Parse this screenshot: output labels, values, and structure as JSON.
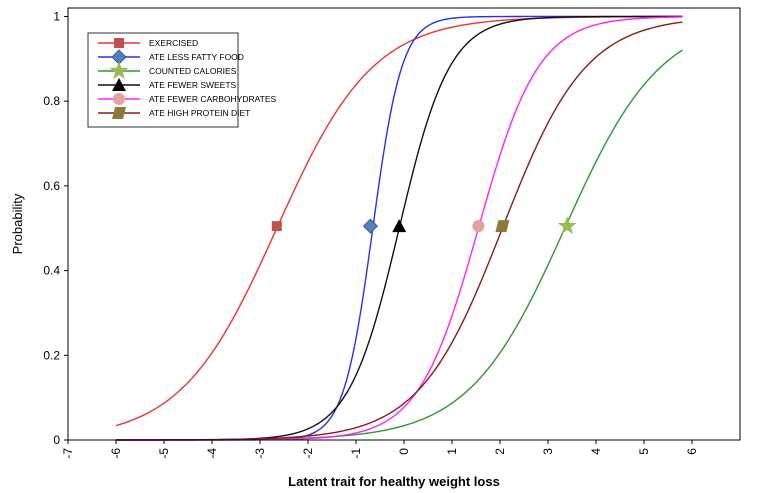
{
  "chart_data": {
    "type": "line",
    "xlabel": "Latent trait for healthy weight loss",
    "ylabel": "Probability",
    "xlim": [
      -7,
      7
    ],
    "ylim": [
      0,
      1.02
    ],
    "x_ticks": [
      -7,
      -6,
      -5,
      -4,
      -3,
      -2,
      -1,
      0,
      1,
      2,
      3,
      4,
      5,
      6
    ],
    "y_ticks": [
      0,
      0.2,
      0.4,
      0.6,
      0.8,
      1
    ],
    "y_tick_labels": [
      "0",
      "0.2",
      "0.4",
      "0.6",
      "0.8",
      "1"
    ],
    "grid": false,
    "legend_position": "top-left",
    "x_range": [
      -6,
      5.8
    ],
    "series": [
      {
        "name": "EXERCISED",
        "color": "#ee3333",
        "marker": "square",
        "marker_color": "#c0504d",
        "location": -2.65,
        "slope": 1.0,
        "marker_at": [
          -2.65,
          0.505
        ]
      },
      {
        "name": "ATE LESS FATTY FOOD",
        "color": "#2233ee",
        "marker": "diamond",
        "marker_color": "#4f81bd",
        "location": -0.65,
        "slope": 3.3,
        "marker_at": [
          -0.7,
          0.505
        ]
      },
      {
        "name": "COUNTED CALORIES",
        "color": "#2a9a2a",
        "marker": "star",
        "marker_color": "#9bbb59",
        "location": 3.35,
        "slope": 1.0,
        "marker_at": [
          3.4,
          0.505
        ]
      },
      {
        "name": "ATE FEWER SWEETS",
        "color": "#111111",
        "marker": "triangle",
        "marker_color": "#000000",
        "location": -0.1,
        "slope": 1.9,
        "marker_at": [
          -0.1,
          0.505
        ]
      },
      {
        "name": "ATE FEWER CARBOHYDRATES",
        "color": "#ff22ff",
        "marker": "circle",
        "marker_color": "#e6a0a0",
        "location": 1.55,
        "slope": 1.6,
        "marker_at": [
          1.55,
          0.505
        ]
      },
      {
        "name": "ATE HIGH PROTEIN DIET",
        "color": "#8b1a1a",
        "marker": "parallelogram",
        "marker_color": "#8c7a3a",
        "location": 2.05,
        "slope": 1.15,
        "marker_at": [
          2.05,
          0.505
        ]
      }
    ]
  }
}
